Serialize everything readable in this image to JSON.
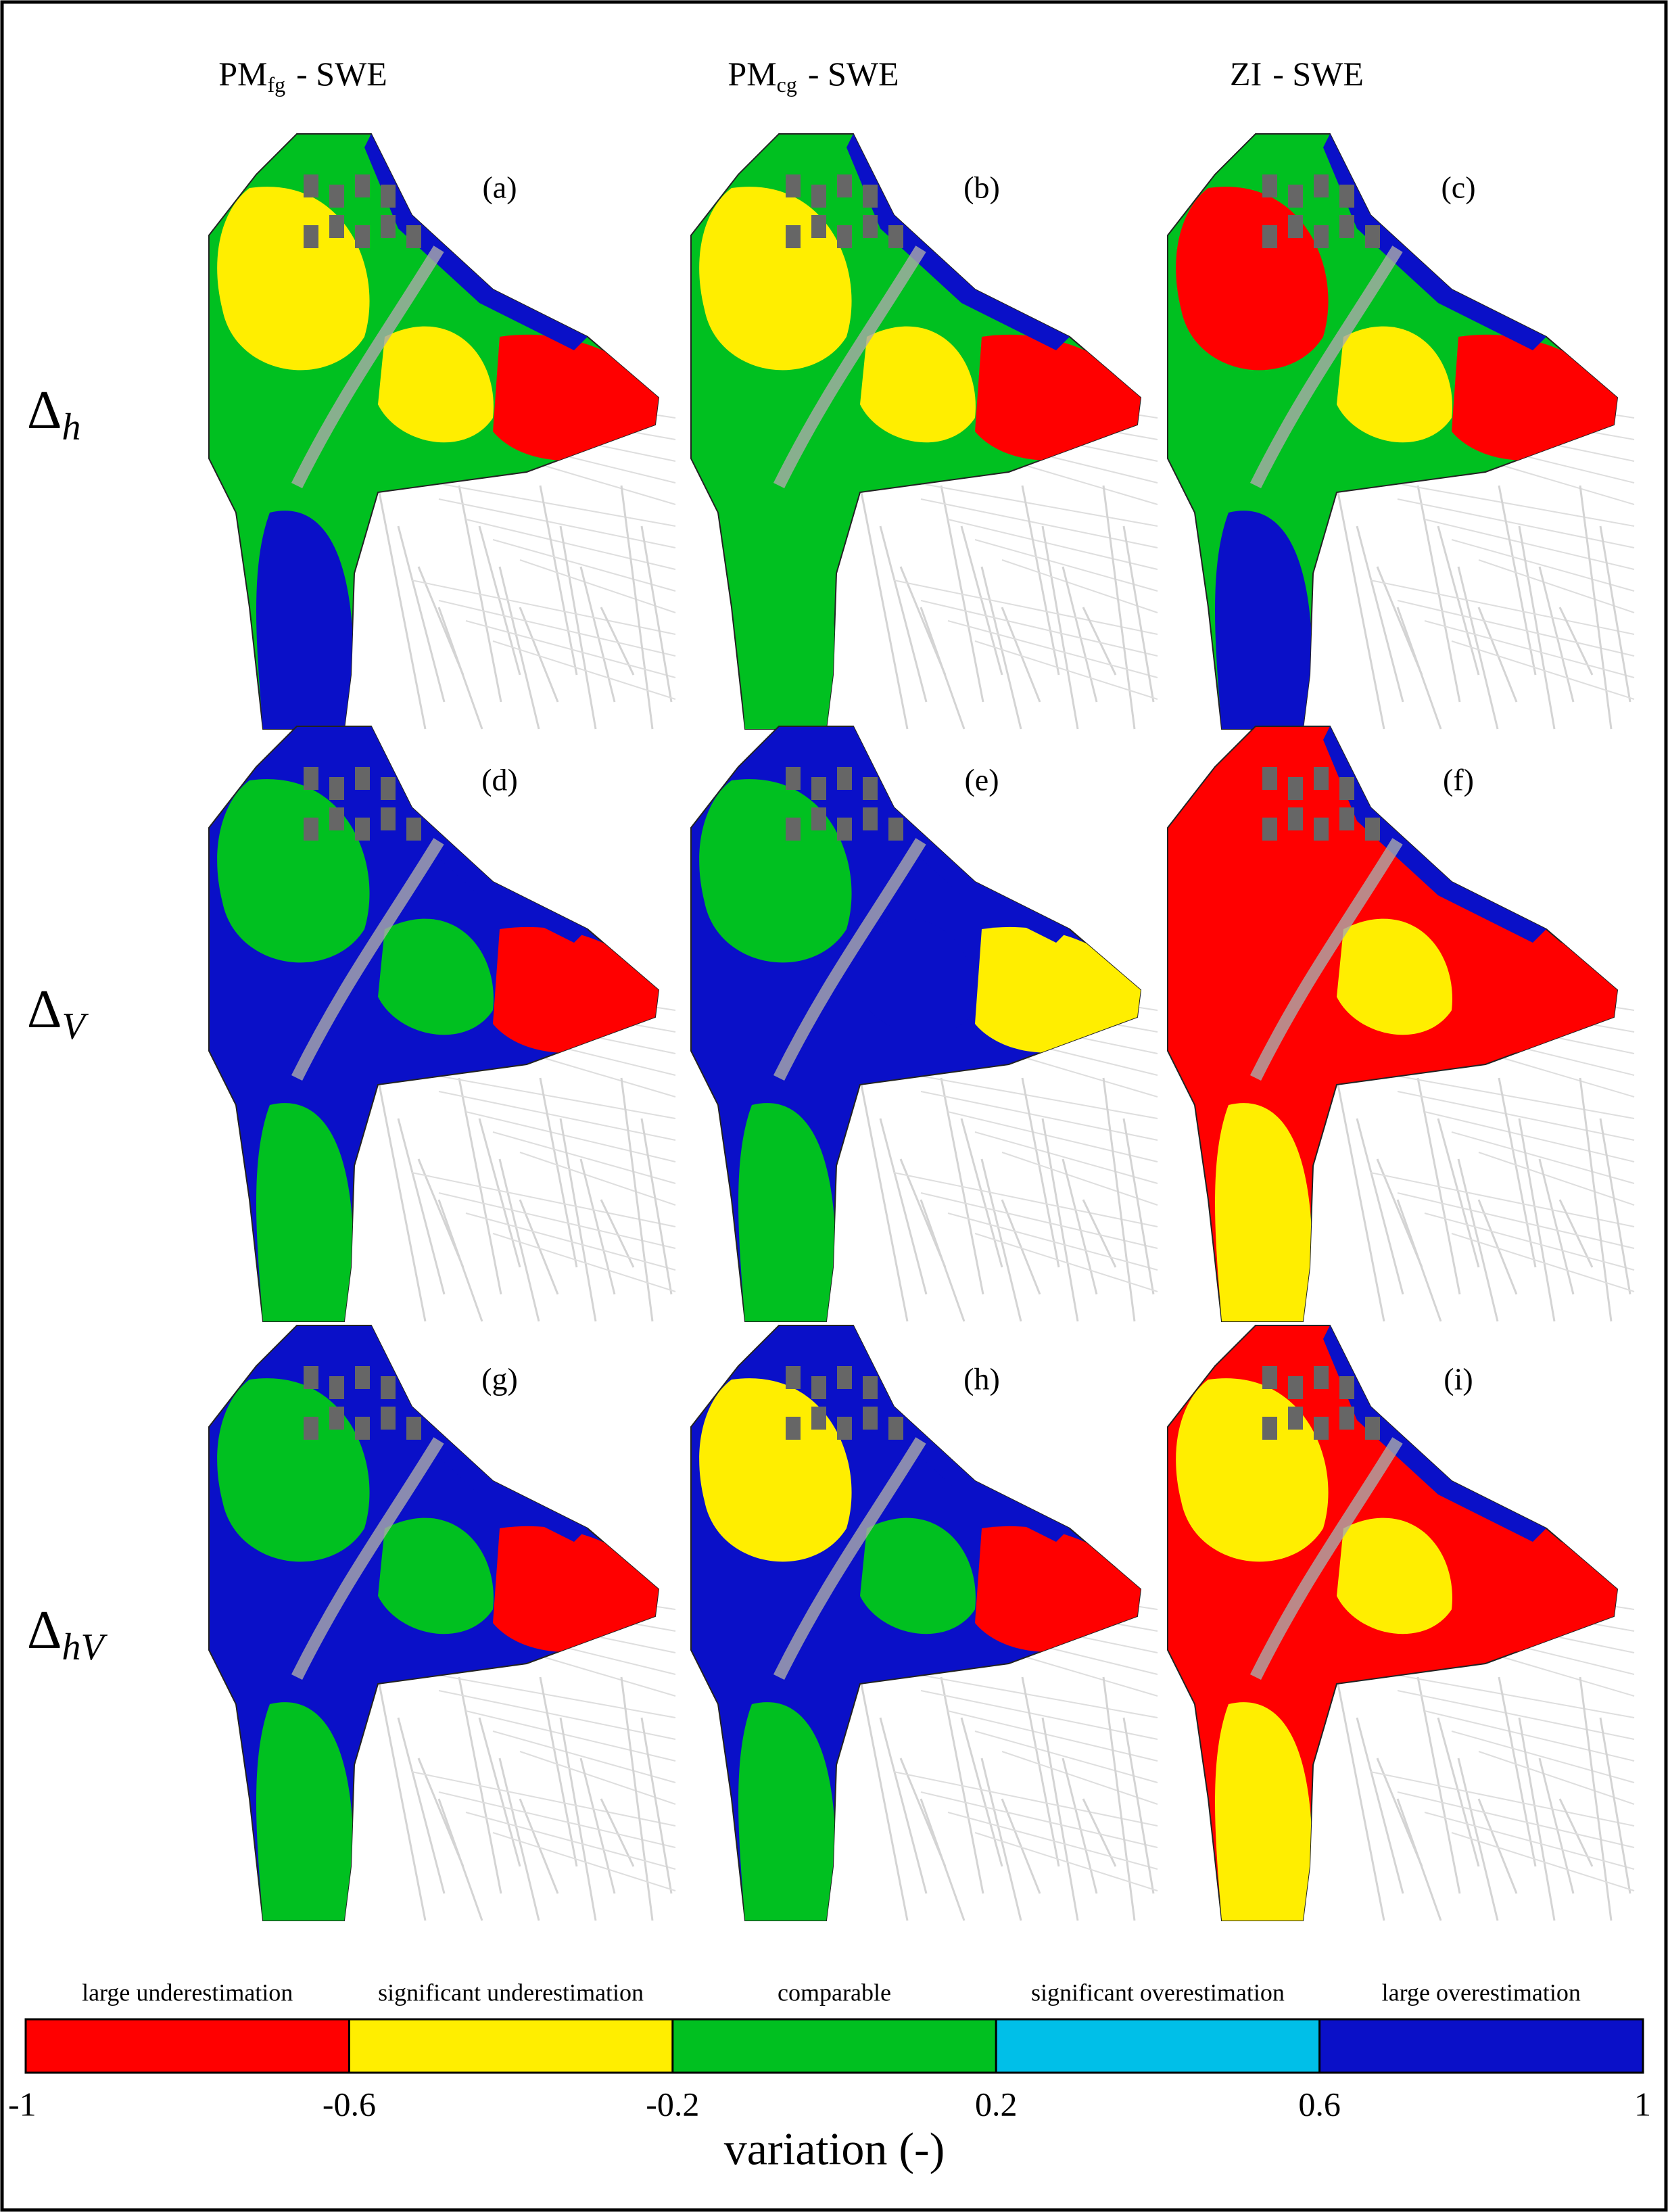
{
  "columns": [
    {
      "main": "PM",
      "subscript": "fg",
      "rest": "- SWE"
    },
    {
      "main": "PM",
      "subscript": "cg",
      "rest": "- SWE"
    },
    {
      "main": "ZI",
      "rest": "- SWE"
    }
  ],
  "rows": [
    {
      "symbol": "Δ",
      "subscript": "h"
    },
    {
      "symbol": "Δ",
      "subscript": "V"
    },
    {
      "symbol": "Δ",
      "subscript": "hV"
    }
  ],
  "panels": [
    "(a)",
    "(b)",
    "(c)",
    "(d)",
    "(e)",
    "(f)",
    "(g)",
    "(h)",
    "(i)"
  ],
  "legend": {
    "classes": [
      {
        "label": "large underestimation",
        "color": "#ff0000"
      },
      {
        "label": "significant underestimation",
        "color": "#ffee00"
      },
      {
        "label": "comparable",
        "color": "#00c020"
      },
      {
        "label": "significant overestimation",
        "color": "#00bfe8"
      },
      {
        "label": "large overestimation",
        "color": "#0a10c8"
      }
    ],
    "ticks": [
      -1,
      -0.6,
      -0.2,
      0.2,
      0.6,
      1
    ],
    "xlabel": "variation (-)"
  }
}
